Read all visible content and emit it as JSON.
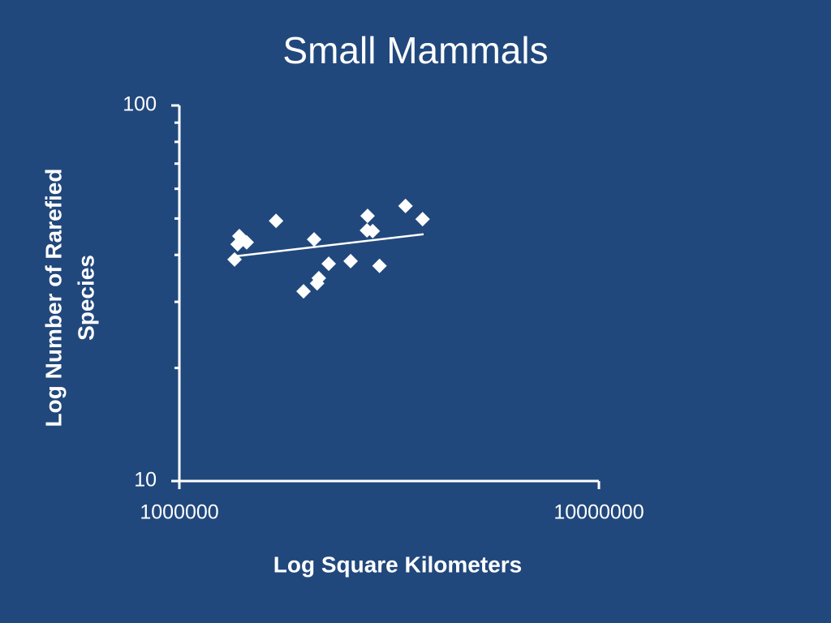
{
  "chart_data": {
    "type": "scatter",
    "title": "Small Mammals",
    "xlabel": "Log Square Kilometers",
    "ylabel": [
      "Log Number of Rarefied",
      "Species"
    ],
    "xlog": true,
    "ylog": true,
    "xlim": [
      1000000,
      10000000
    ],
    "ylim": [
      10,
      100
    ],
    "xticks": [
      1000000,
      10000000
    ],
    "yticks": [
      10,
      100
    ],
    "yminor": [
      20,
      30,
      40,
      50,
      60,
      70,
      80,
      90
    ],
    "color": "#ffffff",
    "x": [
      1354000,
      1390000,
      1377000,
      1447000,
      1700000,
      2095000,
      1977000,
      2130000,
      2150000,
      2270000,
      2560000,
      2810000,
      2800000,
      2890000,
      3000000,
      3460000,
      3800000
    ],
    "values": [
      38.9,
      44.9,
      42.7,
      43.2,
      49.3,
      44.0,
      32.0,
      33.6,
      34.7,
      37.9,
      38.5,
      50.8,
      46.5,
      46.3,
      37.4,
      54.0,
      49.8
    ],
    "trendline": {
      "x": [
        1342000,
        3820000
      ],
      "values": [
        39.6,
        45.4
      ]
    }
  }
}
